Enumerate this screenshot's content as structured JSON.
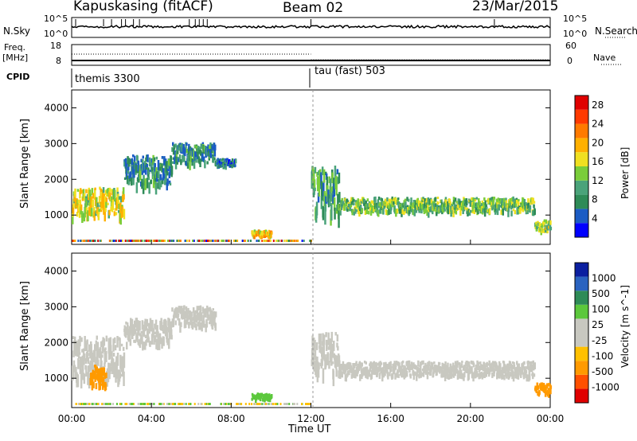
{
  "header": {
    "station": "Kapuskasing (fitACF)",
    "beam": "Beam 02",
    "date": "23/Mar/2015"
  },
  "side_labels": {
    "nsky": "N.Sky",
    "nsearch": "N.Search",
    "freq": "Freq.",
    "freq_unit": "[MHz]",
    "nave": "Nave",
    "cpid": "CPID"
  },
  "noise_axes": {
    "left_top": "10^5",
    "left_bottom": "10^0",
    "right_top": "10^5",
    "right_bottom": "10^0"
  },
  "freq_axes": {
    "left_top": "18",
    "left_bottom": "8",
    "right_top": "60",
    "right_bottom": "0"
  },
  "cpid": {
    "segments": [
      {
        "label": "themis 3300",
        "start_hour": 0
      },
      {
        "label": "tau (fast) 503",
        "start_hour": 12
      }
    ]
  },
  "colors": {
    "power": [
      "#0000ff",
      "#1b5cc4",
      "#2e8b57",
      "#4aa37a",
      "#7acd3a",
      "#f0e020",
      "#ffb000",
      "#ff7a00",
      "#ff3a00",
      "#e00000"
    ],
    "velocity": [
      "#e00000",
      "#ff5000",
      "#ff9a00",
      "#ffc000",
      "#c8c8c0",
      "#c8c8c0",
      "#5cc83c",
      "#2e8b57",
      "#2a63c0",
      "#0b1fa0"
    ]
  },
  "chart_data": [
    {
      "type": "heatmap",
      "title": "",
      "xlabel": "Time UT",
      "ylabel": "Slant Range [km]",
      "xlim": [
        0,
        24
      ],
      "ylim": [
        180,
        4500
      ],
      "x_ticks": [
        "00:00",
        "04:00",
        "08:00",
        "12:00",
        "16:00",
        "20:00",
        "00:00"
      ],
      "y_ticks": [
        1000,
        2000,
        3000,
        4000
      ],
      "colorbar": {
        "label": "Power [dB]",
        "ticks": [
          4,
          8,
          12,
          16,
          20,
          24,
          28
        ],
        "range": [
          0,
          30
        ]
      },
      "scatter_bands": [
        {
          "t0": 0.0,
          "t1": 2.6,
          "r0": 1050,
          "r1": 1800,
          "value": 16
        },
        {
          "t0": 2.6,
          "t1": 5.0,
          "r0": 1900,
          "r1": 2700,
          "value": 8
        },
        {
          "t0": 5.0,
          "t1": 7.2,
          "r0": 2500,
          "r1": 3050,
          "value": 8
        },
        {
          "t0": 7.2,
          "t1": 8.2,
          "r0": 2400,
          "r1": 2600,
          "value": 6
        },
        {
          "t0": 9.0,
          "t1": 10.0,
          "r0": 420,
          "r1": 600,
          "value": 18
        },
        {
          "t0": 12.0,
          "t1": 13.4,
          "r0": 1100,
          "r1": 2400,
          "value": 10
        },
        {
          "t0": 13.4,
          "t1": 23.2,
          "r0": 1120,
          "r1": 1520,
          "value": 12
        },
        {
          "t0": 23.2,
          "t1": 24.0,
          "r0": 600,
          "r1": 900,
          "value": 14
        }
      ]
    },
    {
      "type": "heatmap",
      "title": "",
      "xlabel": "Time UT",
      "ylabel": "Slant Range [km]",
      "xlim": [
        0,
        24
      ],
      "ylim": [
        180,
        4500
      ],
      "x_ticks": [
        "00:00",
        "04:00",
        "08:00",
        "12:00",
        "16:00",
        "20:00",
        "00:00"
      ],
      "y_ticks": [
        1000,
        2000,
        3000,
        4000
      ],
      "colorbar": {
        "label": "Velocity [m s^-1]",
        "ticks": [
          "1000",
          "500",
          "100",
          "25",
          "-25",
          "-100",
          "-500",
          "-1000"
        ]
      },
      "scatter_bands": [
        {
          "t0": 0.0,
          "t1": 2.6,
          "r0": 1100,
          "r1": 2200,
          "value": 0
        },
        {
          "t0": 0.9,
          "t1": 1.7,
          "r0": 800,
          "r1": 1400,
          "value": -400
        },
        {
          "t0": 2.6,
          "t1": 5.0,
          "r0": 2000,
          "r1": 2700,
          "value": 0
        },
        {
          "t0": 5.0,
          "t1": 7.2,
          "r0": 2500,
          "r1": 3050,
          "value": 0
        },
        {
          "t0": 9.0,
          "t1": 10.0,
          "r0": 420,
          "r1": 600,
          "value": 80
        },
        {
          "t0": 12.0,
          "t1": 13.4,
          "r0": 1200,
          "r1": 2300,
          "value": 0
        },
        {
          "t0": 13.4,
          "t1": 23.2,
          "r0": 1100,
          "r1": 1500,
          "value": 0
        },
        {
          "t0": 23.2,
          "t1": 24.0,
          "r0": 600,
          "r1": 900,
          "value": -200
        }
      ]
    }
  ]
}
